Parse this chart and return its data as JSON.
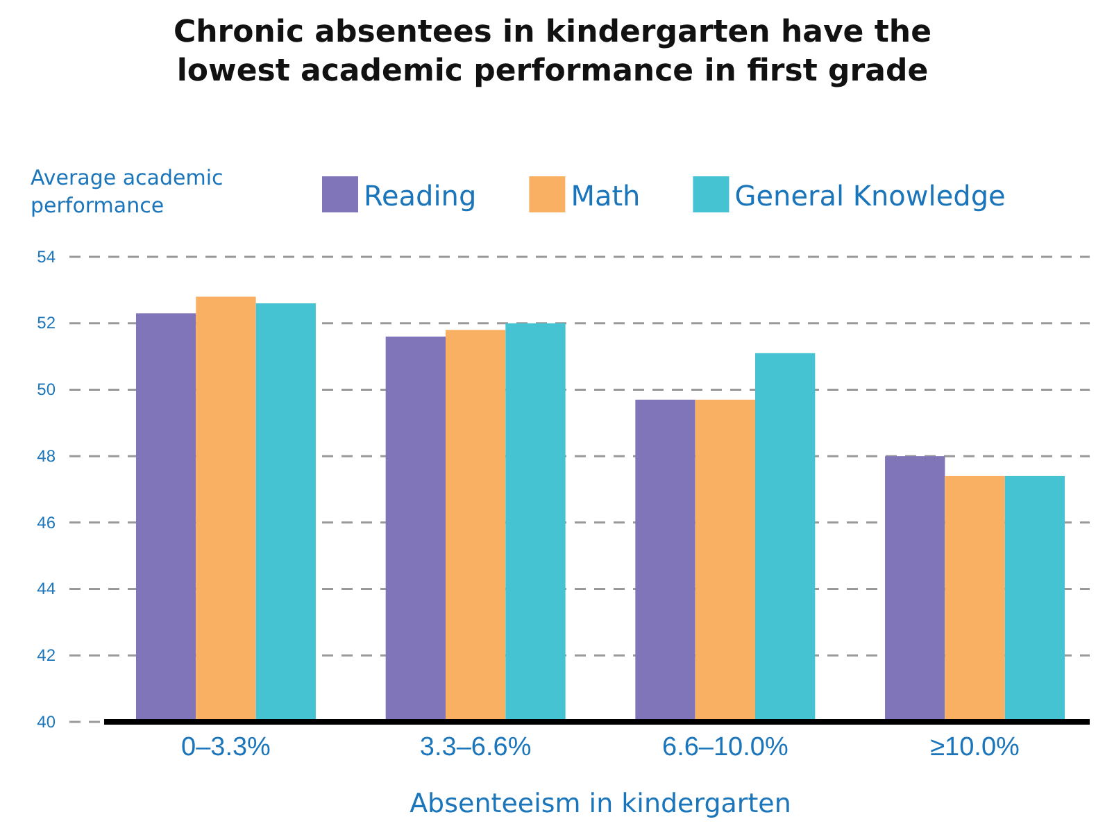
{
  "chart_data": {
    "type": "bar",
    "title": "Chronic absentees in kindergarten have the lowest academic performance in first grade",
    "ylabel": "Average academic performance",
    "xlabel": "Absenteeism in kindergarten",
    "categories": [
      "0–3.3%",
      "3.3–6.6%",
      "6.6–10.0%",
      "≥10.0%"
    ],
    "series": [
      {
        "name": "Reading",
        "color": "#8075b8",
        "values": [
          52.3,
          51.6,
          49.7,
          48.0
        ]
      },
      {
        "name": "Math",
        "color": "#f9b063",
        "values": [
          52.8,
          51.8,
          49.7,
          47.4
        ]
      },
      {
        "name": "General Knowledge",
        "color": "#45c3d3",
        "values": [
          52.6,
          52.0,
          51.1,
          47.4
        ]
      }
    ],
    "ylim": [
      40,
      54
    ],
    "yticks": [
      40,
      42,
      44,
      46,
      48,
      50,
      52,
      54
    ],
    "grid": "y",
    "legend": "top"
  }
}
